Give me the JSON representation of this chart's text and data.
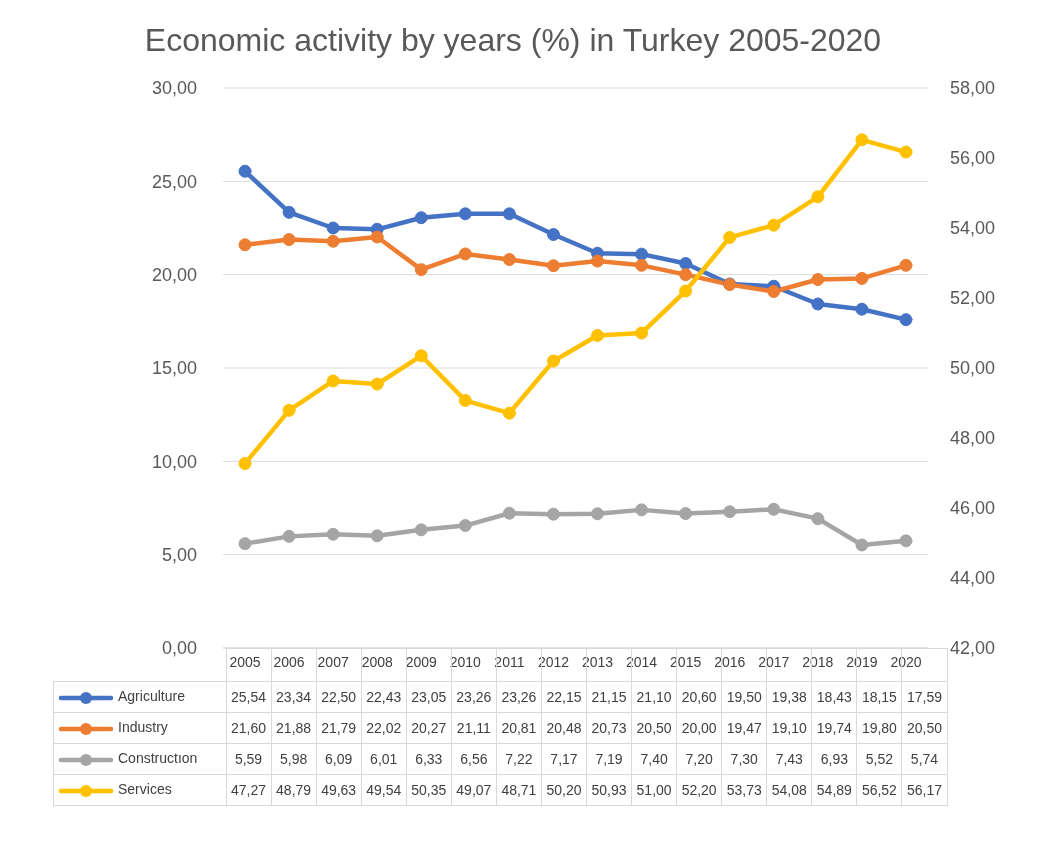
{
  "chart_data": {
    "type": "line",
    "title": "Economic activity by years (%)  in Turkey 2005-2020",
    "categories": [
      "2005",
      "2006",
      "2007",
      "2008",
      "2009",
      "2010",
      "2011",
      "2012",
      "2013",
      "2014",
      "2015",
      "2016",
      "2017",
      "2018",
      "2019",
      "2020"
    ],
    "series": [
      {
        "name": "Agriculture",
        "color": "#4472c4",
        "values": [
          25.54,
          23.34,
          22.5,
          22.43,
          23.05,
          23.26,
          23.26,
          22.15,
          21.15,
          21.1,
          20.6,
          19.5,
          19.38,
          18.43,
          18.15,
          17.59
        ],
        "value_labels": [
          "25,54",
          "23,34",
          "22,50",
          "22,43",
          "23,05",
          "23,26",
          "23,26",
          "22,15",
          "21,15",
          "21,10",
          "20,60",
          "19,50",
          "19,38",
          "18,43",
          "18,15",
          "17,59"
        ]
      },
      {
        "name": "Industry",
        "color": "#ed7d31",
        "values": [
          21.6,
          21.88,
          21.79,
          22.02,
          20.27,
          21.11,
          20.81,
          20.48,
          20.73,
          20.5,
          20.0,
          19.47,
          19.1,
          19.74,
          19.8,
          20.5
        ],
        "value_labels": [
          "21,60",
          "21,88",
          "21,79",
          "22,02",
          "20,27",
          "21,11",
          "20,81",
          "20,48",
          "20,73",
          "20,50",
          "20,00",
          "19,47",
          "19,10",
          "19,74",
          "19,80",
          "20,50"
        ]
      },
      {
        "name": "Constructıon",
        "color": "#a5a5a5",
        "values": [
          5.59,
          5.98,
          6.09,
          6.01,
          6.33,
          6.56,
          7.22,
          7.17,
          7.19,
          7.4,
          7.2,
          7.3,
          7.43,
          6.93,
          5.52,
          5.74
        ],
        "value_labels": [
          "5,59",
          "5,98",
          "6,09",
          "6,01",
          "6,33",
          "6,56",
          "7,22",
          "7,17",
          "7,19",
          "7,40",
          "7,20",
          "7,30",
          "7,43",
          "6,93",
          "5,52",
          "5,74"
        ]
      },
      {
        "name": "Services",
        "color": "#ffc000",
        "axis": "y2",
        "values": [
          47.27,
          48.79,
          49.63,
          49.54,
          50.35,
          49.07,
          48.71,
          50.2,
          50.93,
          51.0,
          52.2,
          53.73,
          54.08,
          54.89,
          56.52,
          56.17
        ],
        "value_labels": [
          "47,27",
          "48,79",
          "49,63",
          "49,54",
          "50,35",
          "49,07",
          "48,71",
          "50,20",
          "50,93",
          "51,00",
          "52,20",
          "53,73",
          "54,08",
          "54,89",
          "56,52",
          "56,17"
        ]
      }
    ],
    "ylim": [
      0,
      30
    ],
    "yticks": [
      {
        "value": 0,
        "label": "0,00"
      },
      {
        "value": 5,
        "label": "5,00"
      },
      {
        "value": 10,
        "label": "10,00"
      },
      {
        "value": 15,
        "label": "15,00"
      },
      {
        "value": 20,
        "label": "20,00"
      },
      {
        "value": 25,
        "label": "25,00"
      },
      {
        "value": 30,
        "label": "30,00"
      }
    ],
    "y2lim": [
      42,
      58
    ],
    "y2ticks": [
      {
        "value": 42,
        "label": "42,00"
      },
      {
        "value": 44,
        "label": "44,00"
      },
      {
        "value": 46,
        "label": "46,00"
      },
      {
        "value": 48,
        "label": "48,00"
      },
      {
        "value": 50,
        "label": "50,00"
      },
      {
        "value": 52,
        "label": "52,00"
      },
      {
        "value": 54,
        "label": "54,00"
      },
      {
        "value": 56,
        "label": "56,00"
      },
      {
        "value": 58,
        "label": "58,00"
      }
    ],
    "grid": "y",
    "legend": "bottom",
    "marker": "circle",
    "line_style": "solid"
  }
}
